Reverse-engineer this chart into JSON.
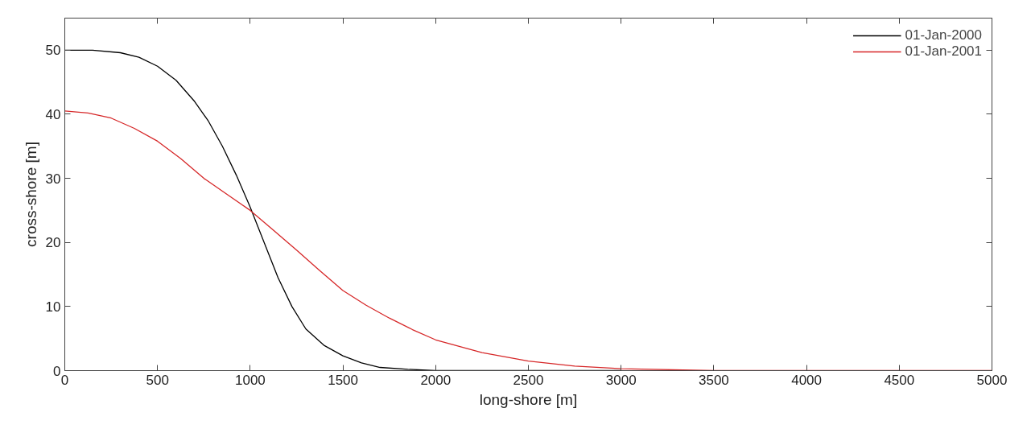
{
  "chart_data": {
    "type": "line",
    "xlabel": "long-shore [m]",
    "ylabel": "cross-shore [m]",
    "series": [
      {
        "name": "01-Jan-2000",
        "color": "#000000",
        "x": [
          0,
          150,
          300,
          400,
          500,
          600,
          700,
          775,
          850,
          925,
          1000,
          1075,
          1150,
          1225,
          1300,
          1400,
          1500,
          1600,
          1700,
          1850,
          2000,
          3000
        ],
        "values": [
          50,
          50,
          49.6,
          48.9,
          47.5,
          45.3,
          42,
          38.9,
          35,
          30.5,
          25.5,
          20,
          14.5,
          10,
          6.5,
          3.9,
          2.3,
          1.2,
          0.5,
          0.2,
          0,
          0
        ]
      },
      {
        "name": "01-Jan-2001",
        "color": "#d62728",
        "x": [
          0,
          125,
          250,
          375,
          500,
          625,
          750,
          875,
          1000,
          1125,
          1250,
          1375,
          1500,
          1625,
          1750,
          1875,
          2000,
          2250,
          2500,
          2750,
          3000,
          3500,
          5000
        ],
        "values": [
          40.5,
          40.2,
          39.4,
          37.8,
          35.8,
          33.1,
          30,
          27.5,
          25,
          21.9,
          18.8,
          15.6,
          12.5,
          10.2,
          8.2,
          6.4,
          4.8,
          2.8,
          1.5,
          0.7,
          0.3,
          0,
          0
        ]
      }
    ],
    "xlim": [
      0,
      5000
    ],
    "ylim": [
      0,
      55
    ],
    "xticks": [
      0,
      500,
      1000,
      1500,
      2000,
      2500,
      3000,
      3500,
      4000,
      4500,
      5000
    ],
    "yticks": [
      0,
      10,
      20,
      30,
      40,
      50
    ],
    "legend": "top right",
    "grid": false,
    "marker": "none",
    "line_style": "solid"
  }
}
